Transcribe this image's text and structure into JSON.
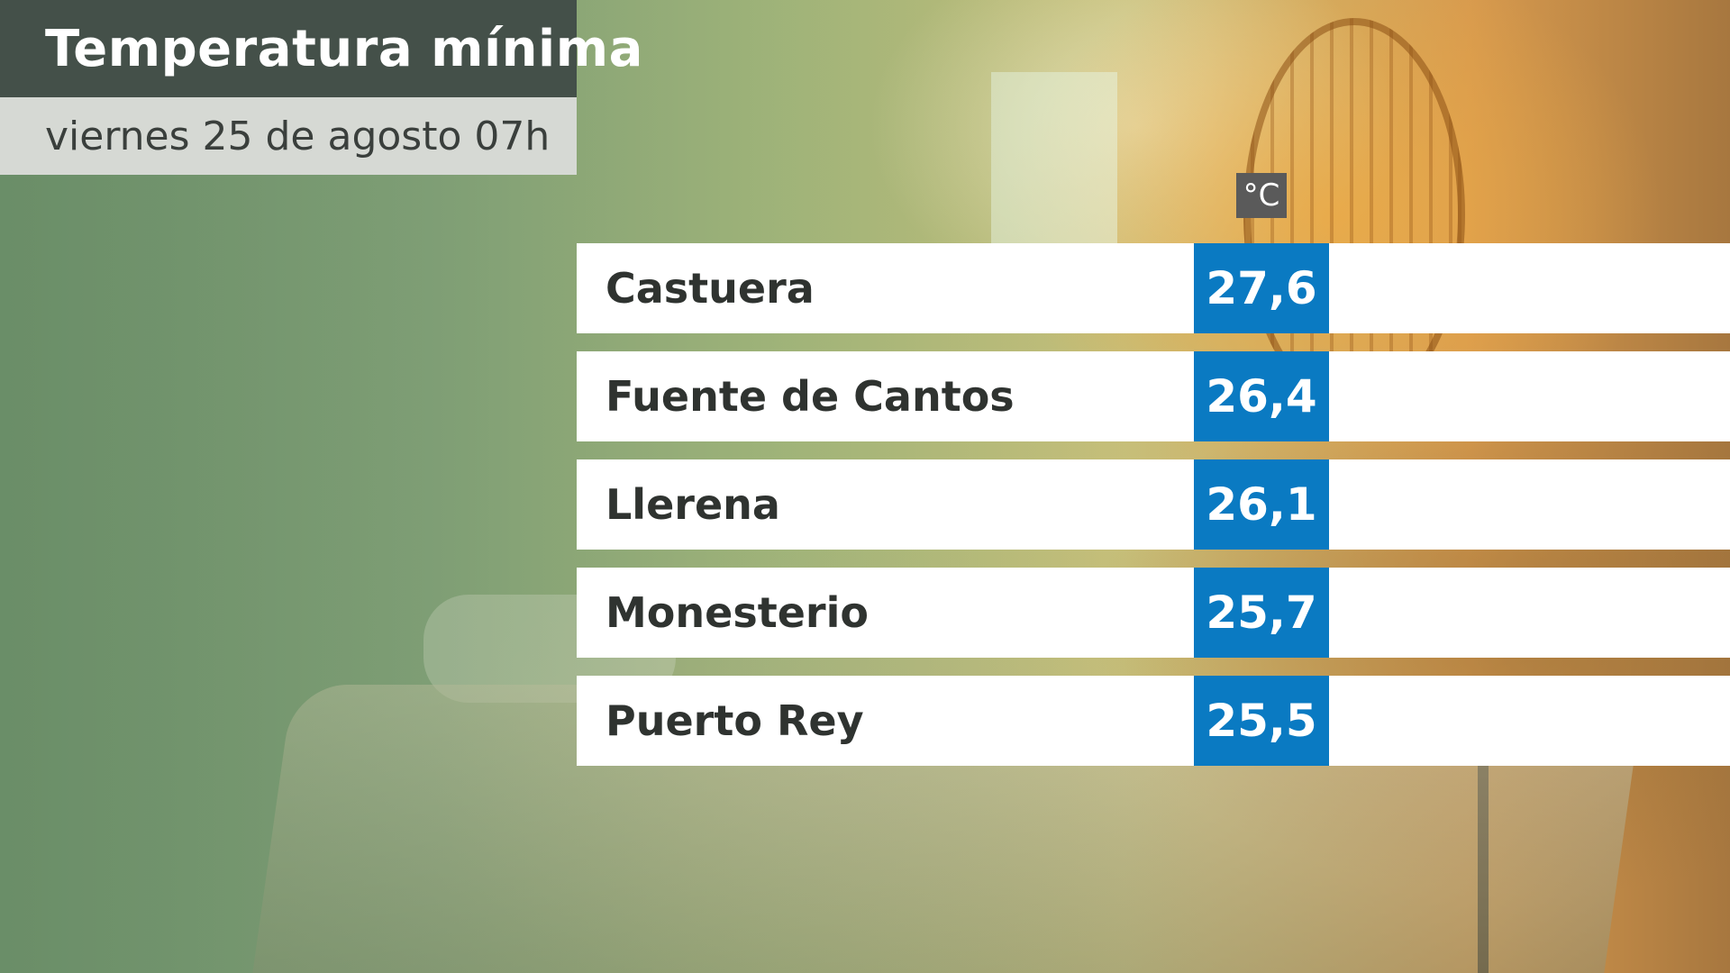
{
  "header": {
    "title": "Temperatura mínima",
    "subtitle": "viernes 25 de agosto 07h"
  },
  "unit": "°C",
  "colors": {
    "title_bg": "#445049",
    "subtitle_bg": "#d6d9d4",
    "value_bg": "#0a7ac2",
    "row_bg": "#ffffff",
    "unit_bg": "#5a5a5a"
  },
  "stations": [
    {
      "name": "Castuera",
      "value": "27,6"
    },
    {
      "name": "Fuente de Cantos",
      "value": "26,4"
    },
    {
      "name": "Llerena",
      "value": "26,1"
    },
    {
      "name": "Monesterio",
      "value": "25,7"
    },
    {
      "name": "Puerto Rey",
      "value": "25,5"
    }
  ]
}
